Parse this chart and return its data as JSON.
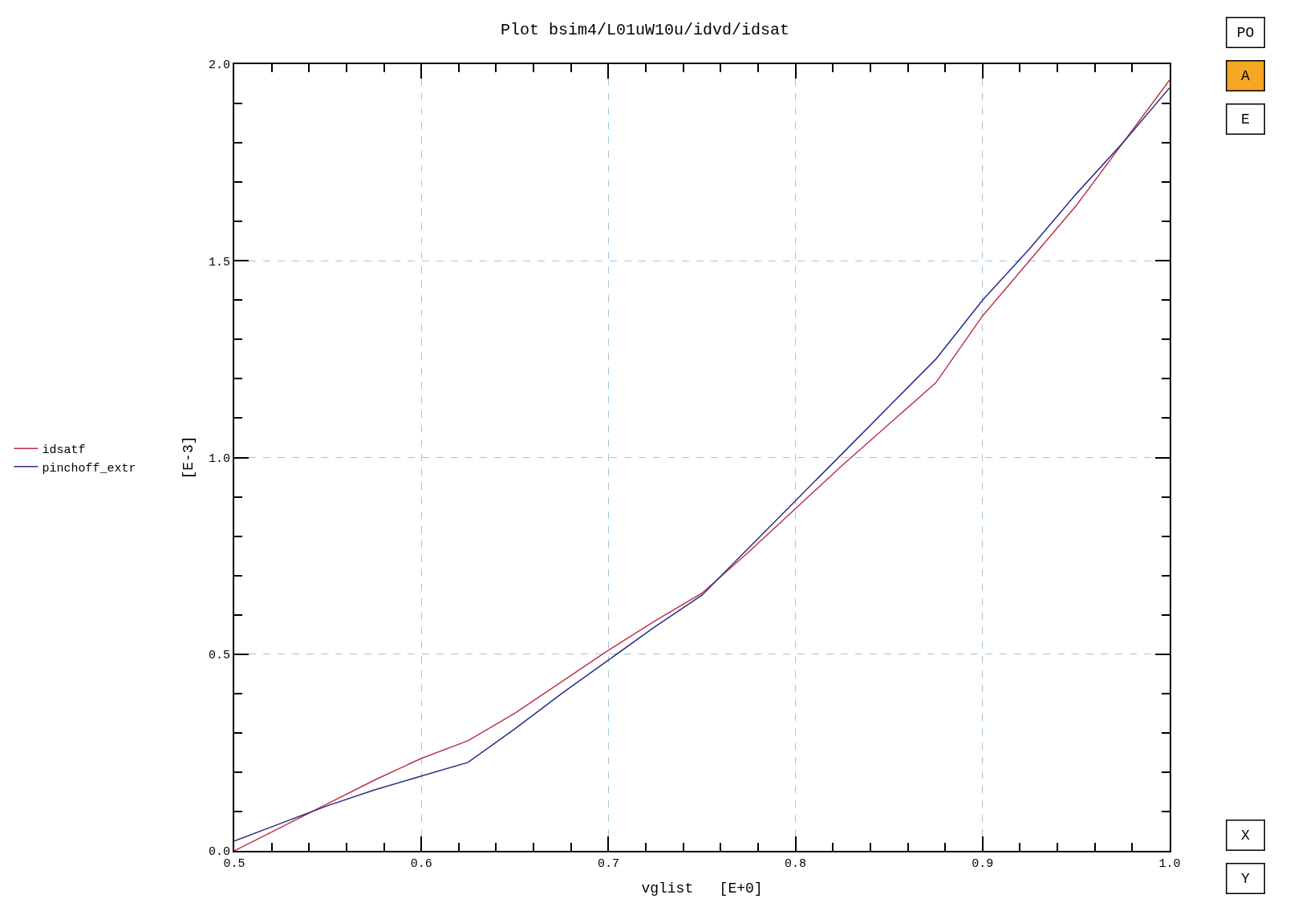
{
  "chart_data": {
    "type": "line",
    "title": "Plot bsim4/L01uW10u/idvd/idsat",
    "xlabel": "vglist   [E+0]",
    "ylabel": "[E-3]",
    "x": [
      0.5,
      0.525,
      0.55,
      0.575,
      0.6,
      0.625,
      0.65,
      0.675,
      0.7,
      0.725,
      0.75,
      0.775,
      0.8,
      0.825,
      0.85,
      0.875,
      0.9,
      0.925,
      0.95,
      0.975,
      1.0
    ],
    "series": [
      {
        "name": "idsatf",
        "color": "#c0304a",
        "values": [
          0,
          0.06,
          0.12,
          0.18,
          0.235,
          0.28,
          0.35,
          0.43,
          0.51,
          0.585,
          0.655,
          0.76,
          0.87,
          0.98,
          1.085,
          1.19,
          1.36,
          1.5,
          1.64,
          1.8,
          1.96
        ]
      },
      {
        "name": "pinchoff_extr",
        "color": "#2a2a8a",
        "values": [
          0.025,
          0.07,
          0.115,
          0.155,
          0.19,
          0.225,
          0.31,
          0.4,
          0.485,
          0.57,
          0.65,
          0.77,
          0.89,
          1.01,
          1.13,
          1.25,
          1.4,
          1.53,
          1.67,
          1.8,
          1.94
        ]
      }
    ],
    "xlim": [
      0.5,
      1.0
    ],
    "xticks": [
      {
        "value": 0.5,
        "label": "0.5"
      },
      {
        "value": 0.52,
        "label": null
      },
      {
        "value": 0.54,
        "label": null
      },
      {
        "value": 0.56,
        "label": null
      },
      {
        "value": 0.58,
        "label": null
      },
      {
        "value": 0.6,
        "label": "0.6"
      },
      {
        "value": 0.62,
        "label": null
      },
      {
        "value": 0.64,
        "label": null
      },
      {
        "value": 0.66,
        "label": null
      },
      {
        "value": 0.68,
        "label": null
      },
      {
        "value": 0.7,
        "label": "0.7"
      },
      {
        "value": 0.72,
        "label": null
      },
      {
        "value": 0.74,
        "label": null
      },
      {
        "value": 0.76,
        "label": null
      },
      {
        "value": 0.78,
        "label": null
      },
      {
        "value": 0.8,
        "label": "0.8"
      },
      {
        "value": 0.82,
        "label": null
      },
      {
        "value": 0.84,
        "label": null
      },
      {
        "value": 0.86,
        "label": null
      },
      {
        "value": 0.88,
        "label": null
      },
      {
        "value": 0.9,
        "label": "0.9"
      },
      {
        "value": 0.92,
        "label": null
      },
      {
        "value": 0.94,
        "label": null
      },
      {
        "value": 0.96,
        "label": null
      },
      {
        "value": 0.98,
        "label": null
      },
      {
        "value": 1.0,
        "label": "1.0"
      }
    ],
    "ylim": [
      0,
      2.0
    ],
    "yticks": [
      {
        "value": 0,
        "label": "0.0"
      },
      {
        "value": 0.1,
        "label": null
      },
      {
        "value": 0.2,
        "label": null
      },
      {
        "value": 0.3,
        "label": null
      },
      {
        "value": 0.4,
        "label": null
      },
      {
        "value": 0.5,
        "label": "0.5"
      },
      {
        "value": 0.6,
        "label": null
      },
      {
        "value": 0.7,
        "label": null
      },
      {
        "value": 0.8,
        "label": null
      },
      {
        "value": 0.9,
        "label": null
      },
      {
        "value": 1.0,
        "label": "1.0"
      },
      {
        "value": 1.1,
        "label": null
      },
      {
        "value": 1.2,
        "label": null
      },
      {
        "value": 1.3,
        "label": null
      },
      {
        "value": 1.4,
        "label": null
      },
      {
        "value": 1.5,
        "label": "1.5"
      },
      {
        "value": 1.6,
        "label": null
      },
      {
        "value": 1.7,
        "label": null
      },
      {
        "value": 1.8,
        "label": null
      },
      {
        "value": 1.9,
        "label": null
      },
      {
        "value": 2.0,
        "label": "2.0"
      }
    ],
    "grid": true,
    "legend": "left",
    "marker": "none",
    "line_style": "solid",
    "annotations": [
      "PO",
      "A",
      "E",
      "X",
      "Y"
    ]
  }
}
